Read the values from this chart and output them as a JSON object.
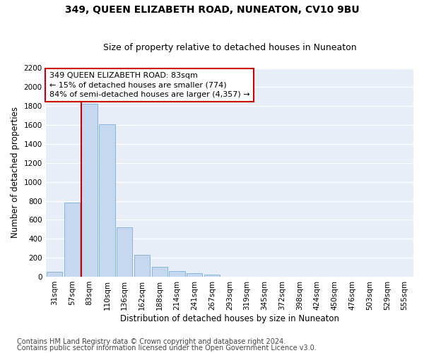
{
  "title": "349, QUEEN ELIZABETH ROAD, NUNEATON, CV10 9BU",
  "subtitle": "Size of property relative to detached houses in Nuneaton",
  "xlabel": "Distribution of detached houses by size in Nuneaton",
  "ylabel": "Number of detached properties",
  "categories": [
    "31sqm",
    "57sqm",
    "83sqm",
    "110sqm",
    "136sqm",
    "162sqm",
    "188sqm",
    "214sqm",
    "241sqm",
    "267sqm",
    "293sqm",
    "319sqm",
    "345sqm",
    "372sqm",
    "398sqm",
    "424sqm",
    "450sqm",
    "476sqm",
    "503sqm",
    "529sqm",
    "555sqm"
  ],
  "values": [
    55,
    780,
    1825,
    1610,
    520,
    230,
    105,
    57,
    35,
    20,
    0,
    0,
    0,
    0,
    0,
    0,
    0,
    0,
    0,
    0,
    0
  ],
  "bar_color": "#c5d8f0",
  "bar_edge_color": "#7aafd4",
  "highlight_index": 2,
  "highlight_line_color": "#cc0000",
  "annotation_text": "349 QUEEN ELIZABETH ROAD: 83sqm\n← 15% of detached houses are smaller (774)\n84% of semi-detached houses are larger (4,357) →",
  "annotation_box_facecolor": "#ffffff",
  "annotation_box_edgecolor": "#cc0000",
  "ylim": [
    0,
    2200
  ],
  "yticks": [
    0,
    200,
    400,
    600,
    800,
    1000,
    1200,
    1400,
    1600,
    1800,
    2000,
    2200
  ],
  "footnote1": "Contains HM Land Registry data © Crown copyright and database right 2024.",
  "footnote2": "Contains public sector information licensed under the Open Government Licence v3.0.",
  "fig_facecolor": "#ffffff",
  "axes_facecolor": "#e8eef8",
  "grid_color": "#ffffff",
  "title_fontsize": 10,
  "subtitle_fontsize": 9,
  "axis_label_fontsize": 8.5,
  "tick_fontsize": 7.5,
  "annotation_fontsize": 8,
  "footnote_fontsize": 7
}
